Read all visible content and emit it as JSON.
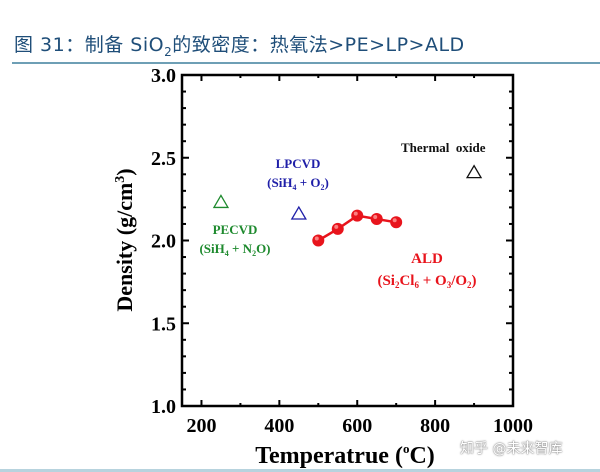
{
  "caption": {
    "prefix": "图 31：制备 SiO",
    "sub": "2",
    "suffix": "的致密度：热氧法>PE>LP>ALD"
  },
  "watermark": "知乎 @未来智库",
  "colors": {
    "caption": "#1f4e79",
    "rule": "#6e9fb5",
    "pecvd": "#1e8a2e",
    "lpcvd": "#1f1fa8",
    "thermal": "#111111",
    "ald": "#e8141c"
  },
  "chart_data": {
    "type": "scatter",
    "title": "",
    "xlabel": "Temperatrue (°C)",
    "ylabel": "Density (g/cm3)",
    "xlim": [
      150,
      1000
    ],
    "ylim": [
      1.0,
      3.0
    ],
    "xticks": [
      200,
      400,
      600,
      800,
      1000
    ],
    "yticks": [
      1.0,
      1.5,
      2.0,
      2.5,
      3.0
    ],
    "grid": false,
    "legend": "none (inline annotations)",
    "series": [
      {
        "name": "PECVD (SiH4 + N2O)",
        "marker": "open-triangle",
        "color": "#1e8a2e",
        "points": [
          [
            250,
            2.23
          ]
        ]
      },
      {
        "name": "LPCVD (SiH4 + O2)",
        "marker": "open-triangle",
        "color": "#1f1fa8",
        "points": [
          [
            450,
            2.16
          ]
        ]
      },
      {
        "name": "Thermal oxide",
        "marker": "open-triangle",
        "color": "#111111",
        "points": [
          [
            900,
            2.41
          ]
        ]
      },
      {
        "name": "ALD (Si2Cl6 + O3/O2)",
        "marker": "filled-circle-line",
        "color": "#e8141c",
        "points": [
          [
            500,
            2.0
          ],
          [
            550,
            2.07
          ],
          [
            600,
            2.15
          ],
          [
            650,
            2.13
          ],
          [
            700,
            2.11
          ]
        ]
      }
    ],
    "annotations": {
      "pecvd": {
        "line1": "PECVD",
        "line2_a": "(SiH",
        "s1": "4",
        "line2_b": " + N",
        "s2": "2",
        "line2_c": "O)"
      },
      "lpcvd": {
        "line1": "LPCVD",
        "line2_a": "(SiH",
        "s1": "4",
        "line2_b": " + O",
        "s2": "2",
        "line2_c": ")"
      },
      "thermal": {
        "line1": "Thermal  oxide"
      },
      "ald": {
        "line1": "ALD",
        "line2_a": "(Si",
        "s1": "2",
        "line2_b": "Cl",
        "s2": "6",
        "line2_c": " + O",
        "s3": "3",
        "line2_d": "/O",
        "s4": "2",
        "line2_e": ")"
      }
    },
    "tick_labels": {
      "x": [
        "200",
        "400",
        "600",
        "800",
        "1000"
      ],
      "y": [
        "1.0",
        "1.5",
        "2.0",
        "2.5",
        "3.0"
      ]
    },
    "xlabel_parts": {
      "main": "Temperatrue (",
      "sup": "o",
      "unit": "C)"
    },
    "ylabel_parts": {
      "main": "Density (g/cm",
      "sup": "3",
      "end": ")"
    }
  }
}
